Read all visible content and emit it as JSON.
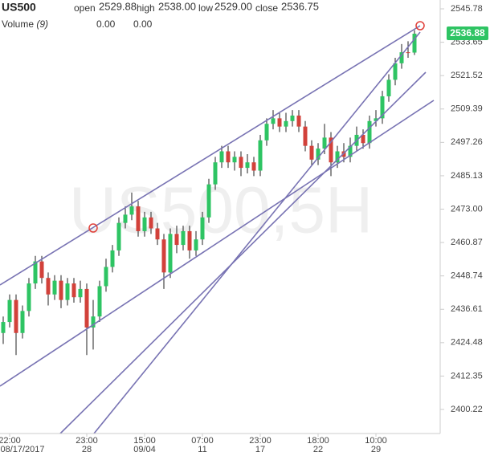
{
  "chart_data": {
    "type": "candlestick",
    "symbol": "US500",
    "watermark": "US500,5H",
    "ohlc_legend": [
      {
        "name": "open",
        "value": "2529.88"
      },
      {
        "name": "high",
        "value": "2538.00"
      },
      {
        "name": "low",
        "value": "2529.00"
      },
      {
        "name": "close",
        "value": "2536.75"
      }
    ],
    "volume_legend": {
      "name": "Volume",
      "param": "(9)",
      "values": [
        "0.00",
        "0.00"
      ],
      "colors": [
        "#e8a39f",
        "#5b7fd0"
      ]
    },
    "last_price_label": "2536.88",
    "up_color": "#2ec463",
    "down_color": "#d2413a",
    "categories": [
      null,
      "22:00",
      null,
      null,
      null,
      null,
      null,
      null,
      null,
      null,
      null,
      null,
      null,
      "23:00",
      null,
      null,
      null,
      null,
      null,
      null,
      null,
      null,
      "15:00",
      null,
      null,
      null,
      null,
      null,
      null,
      null,
      null,
      "07:00",
      null,
      null,
      null,
      null,
      null,
      null,
      null,
      null,
      "23:00",
      null,
      null,
      null,
      null,
      null,
      null,
      null,
      null,
      "18:00",
      null,
      null,
      null,
      null,
      null,
      null,
      null,
      null,
      "10:00",
      null,
      null,
      null,
      null,
      null,
      null
    ],
    "category_dates": [
      null,
      "08/17/2017",
      null,
      null,
      null,
      null,
      null,
      null,
      null,
      null,
      null,
      null,
      null,
      "28",
      null,
      null,
      null,
      null,
      null,
      null,
      null,
      null,
      "09/04",
      null,
      null,
      null,
      null,
      null,
      null,
      null,
      null,
      "11",
      null,
      null,
      null,
      null,
      null,
      null,
      null,
      null,
      "17",
      null,
      null,
      null,
      null,
      null,
      null,
      null,
      null,
      "22",
      null,
      null,
      null,
      null,
      null,
      null,
      null,
      null,
      "29",
      null,
      null,
      null,
      null,
      null,
      null
    ],
    "open": [
      2428,
      2432,
      2440,
      2428,
      2436,
      2446,
      2454,
      2448,
      2442,
      2447,
      2440,
      2446,
      2441,
      2444,
      2430,
      2434,
      2445,
      2452,
      2458,
      2468,
      2471,
      2474,
      2465,
      2470,
      2466,
      2462,
      2450,
      2464,
      2460,
      2465,
      2458,
      2462,
      2470,
      2482,
      2490,
      2494,
      2490,
      2492,
      2488,
      2490,
      2487,
      2498,
      2504,
      2506,
      2503,
      2505,
      2507,
      2503,
      2496,
      2491,
      2495,
      2499,
      2490,
      2494,
      2492,
      2496,
      2500,
      2497,
      2505,
      2506,
      2514,
      2520,
      2526,
      2530,
      2529.88
    ],
    "high": [
      2434,
      2442,
      2442,
      2438,
      2448,
      2456,
      2456,
      2450,
      2449,
      2449,
      2448,
      2448,
      2447,
      2446,
      2440,
      2447,
      2455,
      2460,
      2470,
      2474,
      2479,
      2476,
      2472,
      2472,
      2468,
      2464,
      2466,
      2467,
      2467,
      2467,
      2465,
      2472,
      2484,
      2492,
      2496,
      2496,
      2494,
      2494,
      2493,
      2492,
      2500,
      2506,
      2509,
      2508,
      2508,
      2509,
      2509,
      2505,
      2498,
      2497,
      2504,
      2501,
      2496,
      2497,
      2499,
      2503,
      2502,
      2507,
      2509,
      2516,
      2522,
      2528,
      2533,
      2534,
      2538
    ],
    "low": [
      2424,
      2430,
      2420,
      2426,
      2434,
      2444,
      2446,
      2438,
      2440,
      2437,
      2438,
      2439,
      2439,
      2420,
      2422,
      2432,
      2443,
      2450,
      2456,
      2466,
      2469,
      2463,
      2463,
      2464,
      2460,
      2444,
      2448,
      2457,
      2458,
      2455,
      2456,
      2460,
      2468,
      2480,
      2488,
      2488,
      2487,
      2485,
      2486,
      2485,
      2485,
      2496,
      2502,
      2501,
      2501,
      2503,
      2501,
      2494,
      2489,
      2489,
      2493,
      2485,
      2488,
      2490,
      2490,
      2494,
      2495,
      2495,
      2503,
      2504,
      2512,
      2518,
      2524,
      2528,
      2529
    ],
    "close": [
      2432,
      2440,
      2428,
      2436,
      2446,
      2454,
      2448,
      2442,
      2447,
      2440,
      2446,
      2441,
      2444,
      2430,
      2434,
      2445,
      2452,
      2458,
      2468,
      2471,
      2474,
      2465,
      2470,
      2466,
      2462,
      2450,
      2464,
      2460,
      2465,
      2458,
      2462,
      2470,
      2482,
      2490,
      2494,
      2490,
      2492,
      2488,
      2490,
      2487,
      2498,
      2504,
      2506,
      2503,
      2505,
      2507,
      2503,
      2496,
      2491,
      2495,
      2499,
      2490,
      2494,
      2492,
      2496,
      2500,
      2497,
      2505,
      2506,
      2514,
      2520,
      2526,
      2530,
      2529.88,
      2536.75
    ],
    "ylim": [
      2391.47,
      2548.99
    ],
    "yticks": [
      2545.78,
      2533.65,
      2521.52,
      2509.39,
      2497.26,
      2485.13,
      {
        "value": 2473,
        "label": "2473.00"
      },
      2460.87,
      2448.74,
      2436.61,
      2424.48,
      2412.35,
      2400.22
    ]
  }
}
